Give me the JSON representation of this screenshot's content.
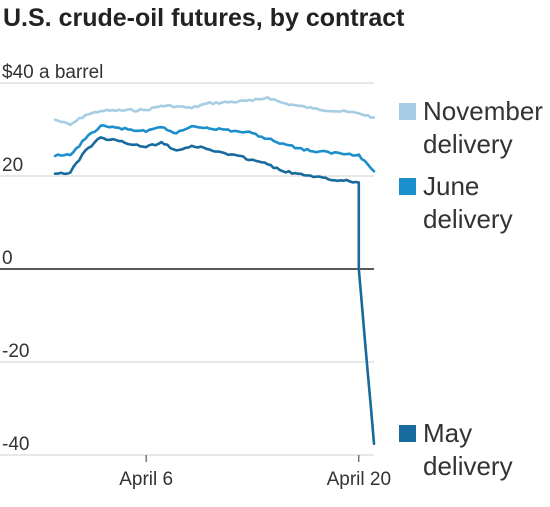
{
  "chart_data": {
    "type": "line",
    "title": "U.S. crude-oil futures, by contract",
    "ylabel": "",
    "xlabel": "",
    "y_unit_label": "$40 a barrel",
    "ylim": [
      -40,
      40
    ],
    "yticks": [
      {
        "value": 40,
        "label": "$40 a barrel"
      },
      {
        "value": 20,
        "label": "20"
      },
      {
        "value": 0,
        "label": "0"
      },
      {
        "value": -20,
        "label": "-20"
      },
      {
        "value": -40,
        "label": "-40"
      }
    ],
    "xlim": [
      "2020-03-31",
      "2020-04-21"
    ],
    "xticks": [
      {
        "value": "2020-04-06",
        "label": "April 6"
      },
      {
        "value": "2020-04-20",
        "label": "April 20"
      }
    ],
    "grid": true,
    "legend_position": "right",
    "series": [
      {
        "name": "November delivery",
        "legend_lines": [
          "November",
          "delivery"
        ],
        "color": "#a6cde4",
        "x": [
          "2020-03-31",
          "2020-04-01",
          "2020-04-02",
          "2020-04-03",
          "2020-04-06",
          "2020-04-07",
          "2020-04-08",
          "2020-04-09",
          "2020-04-10",
          "2020-04-13",
          "2020-04-14",
          "2020-04-15",
          "2020-04-16",
          "2020-04-17",
          "2020-04-20",
          "2020-04-21"
        ],
        "values": [
          32.1,
          31.0,
          33.1,
          34.0,
          34.2,
          35.1,
          35.0,
          34.6,
          35.6,
          36.2,
          36.9,
          35.7,
          35.1,
          34.5,
          33.5,
          32.6
        ]
      },
      {
        "name": "June delivery",
        "legend_lines": [
          "June",
          "delivery"
        ],
        "color": "#1a8fcb",
        "x": [
          "2020-03-31",
          "2020-04-01",
          "2020-04-02",
          "2020-04-03",
          "2020-04-06",
          "2020-04-07",
          "2020-04-08",
          "2020-04-09",
          "2020-04-10",
          "2020-04-13",
          "2020-04-14",
          "2020-04-15",
          "2020-04-16",
          "2020-04-17",
          "2020-04-20",
          "2020-04-21"
        ],
        "values": [
          24.3,
          24.5,
          28.0,
          30.8,
          29.5,
          30.5,
          29.2,
          30.7,
          30.4,
          29.2,
          28.0,
          27.0,
          26.0,
          25.3,
          24.6,
          21.0
        ]
      },
      {
        "name": "May delivery",
        "legend_lines": [
          "May",
          "delivery"
        ],
        "color": "#176a9d",
        "x": [
          "2020-03-31",
          "2020-04-01",
          "2020-04-02",
          "2020-04-03",
          "2020-04-06",
          "2020-04-07",
          "2020-04-08",
          "2020-04-09",
          "2020-04-10",
          "2020-04-13",
          "2020-04-14",
          "2020-04-15",
          "2020-04-16",
          "2020-04-17",
          "2020-04-20",
          "2020-04-20",
          "2020-04-20",
          "2020-04-21"
        ],
        "values": [
          20.5,
          20.7,
          25.5,
          28.3,
          26.2,
          27.3,
          25.5,
          26.5,
          25.8,
          23.5,
          22.5,
          21.0,
          20.5,
          19.8,
          18.6,
          12.0,
          0.0,
          -37.6
        ]
      }
    ]
  }
}
